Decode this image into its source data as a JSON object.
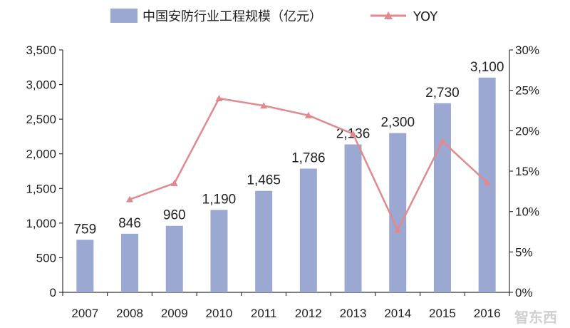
{
  "chart_data": {
    "type": "bar",
    "categories": [
      "2007",
      "2008",
      "2009",
      "2010",
      "2011",
      "2012",
      "2013",
      "2014",
      "2015",
      "2016"
    ],
    "series": [
      {
        "name": "中国安防行业工程规模（亿元）",
        "type": "bar",
        "axis": "left",
        "values": [
          759,
          846,
          960,
          1190,
          1465,
          1786,
          2136,
          2300,
          2730,
          3100
        ],
        "data_labels": [
          "759",
          "846",
          "960",
          "1,190",
          "1,465",
          "1,786",
          "2,136",
          "2,300",
          "2,730",
          "3,100"
        ],
        "color": "#9ba8d1"
      },
      {
        "name": "YOY",
        "type": "line",
        "axis": "right",
        "values": [
          null,
          11.5,
          13.5,
          24.0,
          23.1,
          21.9,
          19.6,
          7.7,
          18.7,
          13.6
        ],
        "color": "#e08a8f"
      }
    ],
    "left_axis": {
      "ylim": [
        0,
        3500
      ],
      "ticks": [
        "0",
        "500",
        "1,000",
        "1,500",
        "2,000",
        "2,500",
        "3,000",
        "3,500"
      ]
    },
    "right_axis": {
      "ylim": [
        0,
        30
      ],
      "ticks": [
        "0%",
        "5%",
        "10%",
        "15%",
        "20%",
        "25%",
        "30%"
      ]
    },
    "legend": {
      "placement": "top"
    },
    "grid": false,
    "watermark": "智东西"
  }
}
